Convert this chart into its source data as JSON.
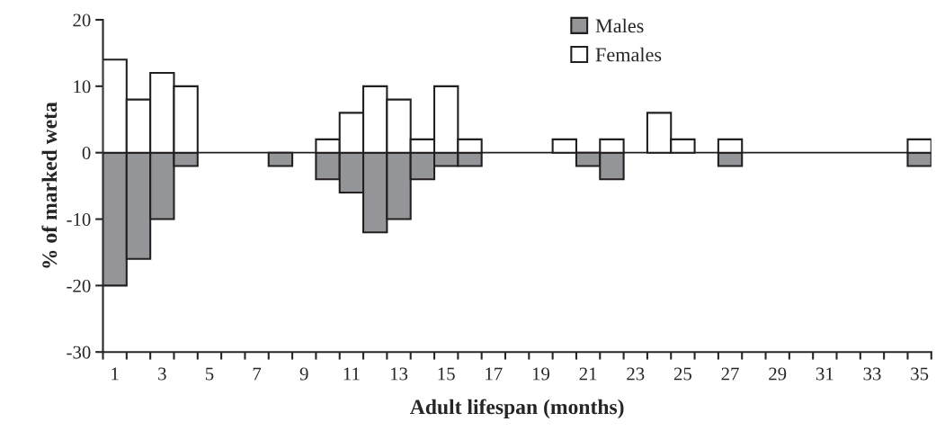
{
  "chart_data": {
    "type": "bar",
    "xlabel": "Adult lifespan (months)",
    "ylabel": "% of marked weta",
    "categories": [
      "1",
      null,
      "3",
      null,
      "5",
      null,
      "7",
      null,
      "9",
      null,
      "11",
      null,
      "13",
      null,
      "15",
      null,
      "17",
      null,
      "19",
      null,
      "21",
      null,
      "23",
      null,
      "25",
      null,
      "27",
      null,
      "29",
      null,
      "31",
      null,
      "33",
      null,
      "35"
    ],
    "series": [
      {
        "name": "Males",
        "color": "#939598",
        "values": [
          -20,
          -16,
          -10,
          -2,
          null,
          null,
          null,
          -2,
          null,
          -4,
          -6,
          -12,
          -10,
          -4,
          -2,
          -2,
          null,
          null,
          null,
          null,
          -2,
          -4,
          null,
          null,
          null,
          null,
          -2,
          null,
          null,
          null,
          null,
          null,
          null,
          null,
          -2
        ]
      },
      {
        "name": "Females",
        "color": "#ffffff",
        "values": [
          14,
          8,
          12,
          10,
          null,
          null,
          null,
          null,
          null,
          2,
          6,
          10,
          8,
          2,
          10,
          2,
          null,
          null,
          null,
          2,
          null,
          2,
          null,
          6,
          2,
          null,
          2,
          null,
          null,
          null,
          null,
          null,
          null,
          null,
          2
        ]
      }
    ],
    "ylim": [
      -30,
      20
    ],
    "yticks": [
      -30,
      -20,
      -10,
      0,
      10,
      20
    ],
    "ref_lines": [
      {
        "axis": "y",
        "value": 0,
        "color": "#231f20"
      }
    ],
    "grid": false,
    "legend": "top"
  }
}
